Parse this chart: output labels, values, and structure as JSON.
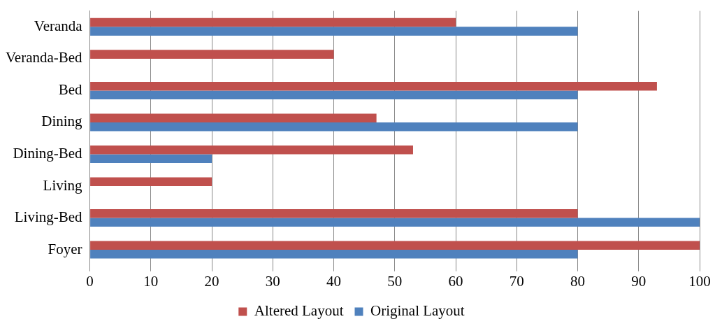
{
  "chart_data": {
    "type": "bar",
    "orientation": "horizontal",
    "categories": [
      "Veranda",
      "Veranda-Bed",
      "Bed",
      "Dining",
      "Dining-Bed",
      "Living",
      "Living-Bed",
      "Foyer"
    ],
    "series": [
      {
        "name": "Altered Layout",
        "color": "#c0504d",
        "values": [
          60,
          40,
          93,
          47,
          53,
          20,
          80,
          100
        ]
      },
      {
        "name": "Original Layout",
        "color": "#4f81bd",
        "values": [
          80,
          0,
          80,
          80,
          20,
          0,
          100,
          80
        ]
      }
    ],
    "xlim": [
      0,
      100
    ],
    "xticks": [
      0,
      10,
      20,
      30,
      40,
      50,
      60,
      70,
      80,
      90,
      100
    ],
    "grid": "x",
    "legend": "bottom"
  }
}
